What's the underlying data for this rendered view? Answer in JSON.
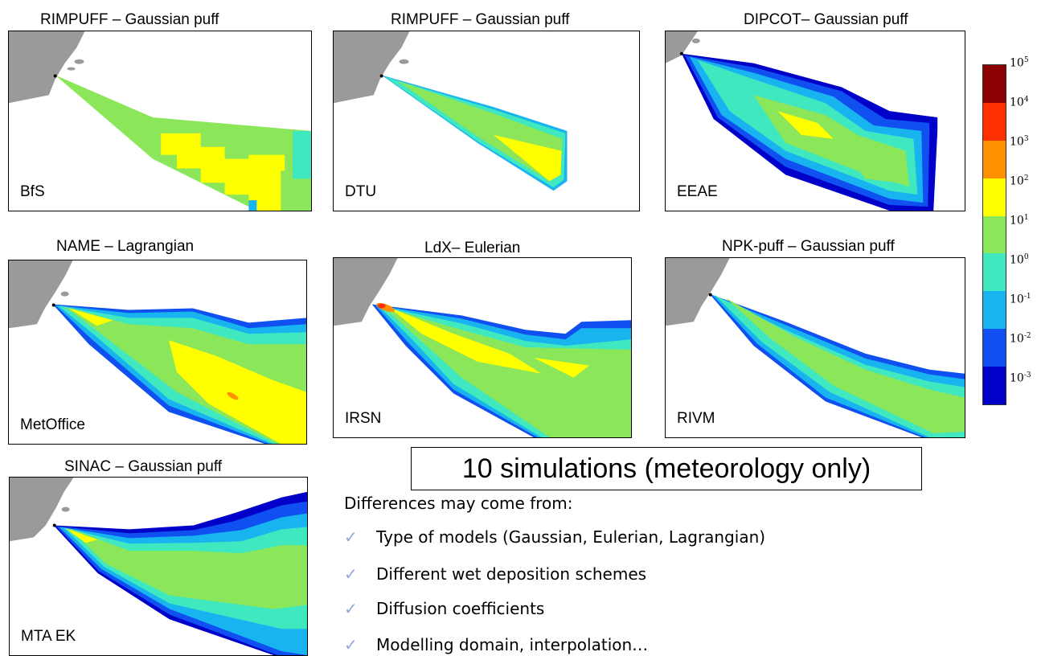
{
  "panels": [
    {
      "title": "RIMPUFF – Gaussian puff",
      "label": "BfS"
    },
    {
      "title": "RIMPUFF – Gaussian puff",
      "label": "DTU"
    },
    {
      "title": "DIPCOT– Gaussian puff",
      "label": "EEAE"
    },
    {
      "title": "NAME – Lagrangian",
      "label": "MetOffice"
    },
    {
      "title": "LdX– Eulerian",
      "label": "IRSN"
    },
    {
      "title": "NPK-puff – Gaussian puff",
      "label": "RIVM"
    },
    {
      "title": "SINAC – Gaussian puff",
      "label": "MTA EK"
    }
  ],
  "colorbar": {
    "ticks": [
      {
        "base": "10",
        "exp": "5"
      },
      {
        "base": "10",
        "exp": "4"
      },
      {
        "base": "10",
        "exp": "3"
      },
      {
        "base": "10",
        "exp": "2"
      },
      {
        "base": "10",
        "exp": "1"
      },
      {
        "base": "10",
        "exp": "0"
      },
      {
        "base": "10",
        "exp": "-1"
      },
      {
        "base": "10",
        "exp": "-2"
      },
      {
        "base": "10",
        "exp": "-3"
      }
    ],
    "colors": [
      "#8b0000",
      "#ff3000",
      "#ff9000",
      "#ffff00",
      "#8ce65a",
      "#40e8c0",
      "#18b4f0",
      "#1050f0",
      "#0000c8"
    ]
  },
  "summary": {
    "headline": "10 simulations (meteorology only)",
    "heading": "Differences may come from:",
    "bullets": [
      "Type of models (Gaussian, Eulerian, Lagrangian)",
      "Different wet deposition schemes",
      "Diffusion coefficients",
      "Modelling domain, interpolation…"
    ]
  }
}
